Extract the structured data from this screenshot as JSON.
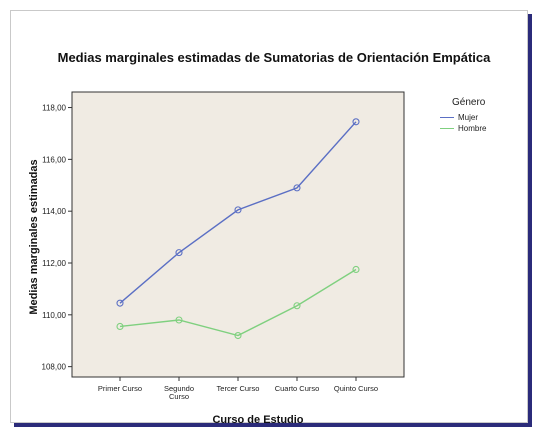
{
  "chart_data": {
    "type": "line",
    "title": "Medias marginales estimadas de Sumatorias de Orientación Empática",
    "xlabel": "Curso de Estudio",
    "ylabel": "Medias marginales estimadas",
    "categories": [
      "Primer Curso",
      "Segundo Curso",
      "Tercer Curso",
      "Cuarto Curso",
      "Quinto Curso"
    ],
    "ylim": [
      107.6,
      118.6
    ],
    "yticks": [
      108,
      110,
      112,
      114,
      116,
      118
    ],
    "ytick_labels": [
      "108,00",
      "110,00",
      "112,00",
      "114,00",
      "116,00",
      "118,00"
    ],
    "legend_title": "Género",
    "legend_position": "right",
    "grid": false,
    "plot_background": "#f0ebe3",
    "series": [
      {
        "name": "Mujer",
        "color": "#5b6fc4",
        "values": [
          110.45,
          112.4,
          114.05,
          114.9,
          117.45
        ]
      },
      {
        "name": "Hombre",
        "color": "#7fd07f",
        "values": [
          109.55,
          109.8,
          109.2,
          110.35,
          111.75
        ]
      }
    ]
  }
}
